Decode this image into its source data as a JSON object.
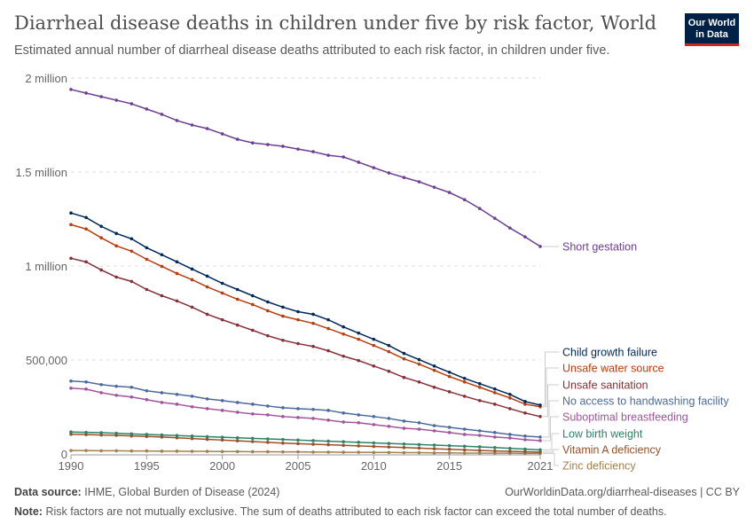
{
  "header": {
    "title": "Diarrheal disease deaths in children under five by risk factor, World",
    "subtitle": "Estimated annual number of diarrheal disease deaths attributed to each risk factor, in children under five.",
    "logo": "Our World in Data"
  },
  "footer": {
    "source_label": "Data source:",
    "source": "IHME, Global Burden of Disease (2024)",
    "url": "OurWorldinData.org/diarrheal-diseases | CC BY",
    "note_label": "Note:",
    "note": "Risk factors are not mutually exclusive. The sum of deaths attributed to each risk factor can exceed the total number of deaths."
  },
  "chart_data": {
    "type": "line",
    "title": "Diarrheal disease deaths in children under five by risk factor, World",
    "xlim": [
      1990,
      2021
    ],
    "ylim": [
      0,
      2000000
    ],
    "grid": "horizontal dashed",
    "x_ticks": [
      "1990",
      "1995",
      "2000",
      "2005",
      "2010",
      "2015",
      "2021"
    ],
    "x_tick_values": [
      1990,
      1995,
      2000,
      2005,
      2010,
      2015,
      2021
    ],
    "y_ticks": [
      "0",
      "500,000",
      "1 million",
      "1.5 million",
      "2 million"
    ],
    "y_tick_values": [
      0,
      500000,
      1000000,
      1500000,
      2000000
    ],
    "legend": "right (line-end labels)",
    "x": [
      1990,
      1991,
      1992,
      1993,
      1994,
      1995,
      1996,
      1997,
      1998,
      1999,
      2000,
      2001,
      2002,
      2003,
      2004,
      2005,
      2006,
      2007,
      2008,
      2009,
      2010,
      2011,
      2012,
      2013,
      2014,
      2015,
      2016,
      2017,
      2018,
      2019,
      2020,
      2021
    ],
    "series": [
      {
        "name": "Short gestation",
        "color": "#6d3e91",
        "values": [
          1939000,
          1920000,
          1901000,
          1882000,
          1863000,
          1835000,
          1807000,
          1774000,
          1750000,
          1731000,
          1703000,
          1674000,
          1655000,
          1646000,
          1637000,
          1622000,
          1608000,
          1589000,
          1580000,
          1552000,
          1523000,
          1495000,
          1471000,
          1448000,
          1419000,
          1391000,
          1353000,
          1306000,
          1254000,
          1202000,
          1155000,
          1104000
        ]
      },
      {
        "name": "Child growth failure",
        "color": "#00295b",
        "values": [
          1282000,
          1258000,
          1211000,
          1173000,
          1145000,
          1097000,
          1060000,
          1022000,
          984000,
          946000,
          908000,
          875000,
          842000,
          809000,
          781000,
          757000,
          743000,
          714000,
          676000,
          643000,
          610000,
          577000,
          535000,
          502000,
          468000,
          435000,
          402000,
          374000,
          346000,
          317000,
          279000,
          260000
        ]
      },
      {
        "name": "Unsafe water source",
        "color": "#b83e0d",
        "values": [
          1220000,
          1197000,
          1150000,
          1107000,
          1079000,
          1036000,
          998000,
          960000,
          927000,
          889000,
          856000,
          823000,
          795000,
          762000,
          733000,
          714000,
          695000,
          667000,
          638000,
          610000,
          577000,
          544000,
          506000,
          478000,
          445000,
          412000,
          383000,
          355000,
          326000,
          298000,
          265000,
          251000
        ]
      },
      {
        "name": "Unsafe sanitation",
        "color": "#883039",
        "values": [
          1041000,
          1022000,
          979000,
          941000,
          918000,
          875000,
          842000,
          814000,
          781000,
          743000,
          714000,
          686000,
          658000,
          629000,
          605000,
          587000,
          572000,
          549000,
          520000,
          497000,
          468000,
          440000,
          407000,
          383000,
          355000,
          331000,
          307000,
          284000,
          265000,
          241000,
          218000,
          199000
        ]
      },
      {
        "name": "No access to handwashing facility",
        "color": "#4c6a9c",
        "values": [
          388000,
          383000,
          369000,
          360000,
          355000,
          336000,
          326000,
          317000,
          307000,
          293000,
          284000,
          274000,
          265000,
          255000,
          246000,
          241000,
          237000,
          232000,
          218000,
          208000,
          199000,
          189000,
          175000,
          166000,
          151000,
          142000,
          132000,
          123000,
          114000,
          104000,
          95000,
          90000
        ]
      },
      {
        "name": "Suboptimal breastfeeding",
        "color": "#a2559c",
        "values": [
          350000,
          345000,
          326000,
          312000,
          303000,
          289000,
          274000,
          265000,
          251000,
          241000,
          232000,
          222000,
          213000,
          208000,
          199000,
          194000,
          189000,
          180000,
          170000,
          166000,
          156000,
          147000,
          137000,
          132000,
          123000,
          114000,
          104000,
          99000,
          90000,
          85000,
          76000,
          71000
        ]
      },
      {
        "name": "Low birth weight",
        "color": "#2c8465",
        "values": [
          117000,
          115000,
          113000,
          110000,
          107000,
          104000,
          101000,
          98000,
          95000,
          92000,
          89000,
          86000,
          83000,
          80000,
          77000,
          74000,
          71000,
          68000,
          65000,
          62000,
          59000,
          56000,
          53000,
          50000,
          47000,
          44000,
          41000,
          38000,
          34000,
          30000,
          26000,
          22000
        ]
      },
      {
        "name": "Vitamin A deficiency",
        "color": "#9a5129",
        "values": [
          105000,
          103000,
          101000,
          99000,
          96000,
          93000,
          90000,
          86000,
          82000,
          78000,
          74000,
          70000,
          66000,
          62000,
          58000,
          55000,
          52000,
          49000,
          46000,
          43000,
          40000,
          37000,
          34000,
          31000,
          28000,
          25000,
          22000,
          19000,
          16000,
          14000,
          12000,
          10000
        ]
      },
      {
        "name": "Zinc deficiency",
        "color": "#a2804f",
        "values": [
          18000,
          18000,
          17000,
          17000,
          16000,
          16000,
          15000,
          15000,
          14000,
          14000,
          13000,
          13000,
          12000,
          12000,
          11000,
          11000,
          10000,
          10000,
          9000,
          9000,
          8000,
          8000,
          7000,
          7000,
          6000,
          6000,
          5000,
          5000,
          4000,
          4000,
          3000,
          3000
        ]
      }
    ]
  }
}
